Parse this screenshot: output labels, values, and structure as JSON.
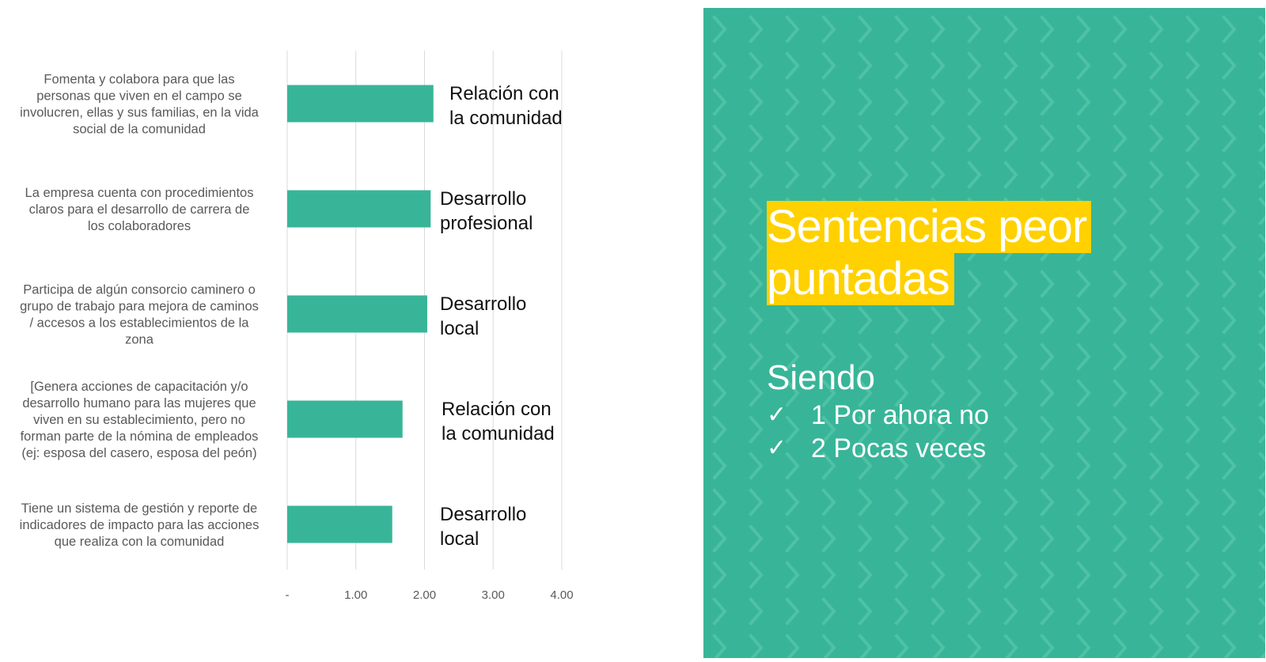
{
  "colors": {
    "accent": "#38B598",
    "highlight": "#FFD100",
    "grid": "#D9D9D9"
  },
  "chart_data": {
    "type": "bar",
    "orientation": "horizontal",
    "categories": [
      "Fomenta y colabora para que las personas que viven en el campo se involucren, ellas y sus familias, en la vida social de la comunidad",
      "La empresa cuenta con procedimientos claros para el desarrollo de carrera de los colaboradores",
      "Participa de algún consorcio caminero o grupo de trabajo para mejora de caminos / accesos a los establecimientos de la zona",
      "[Genera acciones de capacitación y/o desarrollo humano para las mujeres que viven en su establecimiento, pero no forman parte de la nómina de empleados (ej: esposa del casero, esposa del peón)",
      "Tiene un sistema de gestión y reporte de indicadores de impacto para las acciones que realiza con la comunidad"
    ],
    "category_lines": [
      [
        "Fomenta y colabora para que las",
        "personas que viven en el campo se",
        "involucren, ellas y sus familias, en la vida",
        "social de la comunidad"
      ],
      [
        "La empresa cuenta con procedimientos",
        "claros para el desarrollo de carrera de",
        "los colaboradores"
      ],
      [
        "Participa de algún consorcio caminero o",
        "grupo de trabajo para mejora de caminos",
        "/ accesos a los establecimientos de la",
        "zona"
      ],
      [
        "[Genera acciones de capacitación y/o",
        "desarrollo humano para las mujeres que",
        "viven en su establecimiento, pero no",
        "forman parte de la nómina de empleados",
        "(ej: esposa del casero, esposa del peón)"
      ],
      [
        "Tiene un sistema de gestión y reporte de",
        "indicadores de impacto para las acciones",
        "que realiza con la comunidad"
      ]
    ],
    "values": [
      2.13,
      2.09,
      2.04,
      1.68,
      1.53
    ],
    "annotations": [
      [
        "Relación con",
        "la comunidad"
      ],
      [
        "Desarrollo",
        "profesional"
      ],
      [
        "Desarrollo",
        "local"
      ],
      [
        "Relación con",
        "la comunidad"
      ],
      [
        "Desarrollo",
        "local"
      ]
    ],
    "xlim": [
      0,
      4
    ],
    "xticks": [
      0,
      1,
      2,
      3,
      4
    ],
    "xtick_labels": [
      "-",
      "1.00",
      "2.00",
      "3.00",
      "4.00"
    ],
    "grid": "vertical",
    "bar_color": "#38B598",
    "title": "",
    "xlabel": "",
    "ylabel": ""
  },
  "panel": {
    "title_lines": [
      "Sentencias peor",
      "puntadas"
    ],
    "subtitle": "Siendo",
    "bullets": [
      {
        "icon": "checkmark-icon",
        "text": "1 Por ahora no"
      },
      {
        "icon": "checkmark-icon",
        "text": "2 Pocas veces"
      }
    ],
    "background_color": "#38B598",
    "pattern_color": "#4FC2A6"
  }
}
